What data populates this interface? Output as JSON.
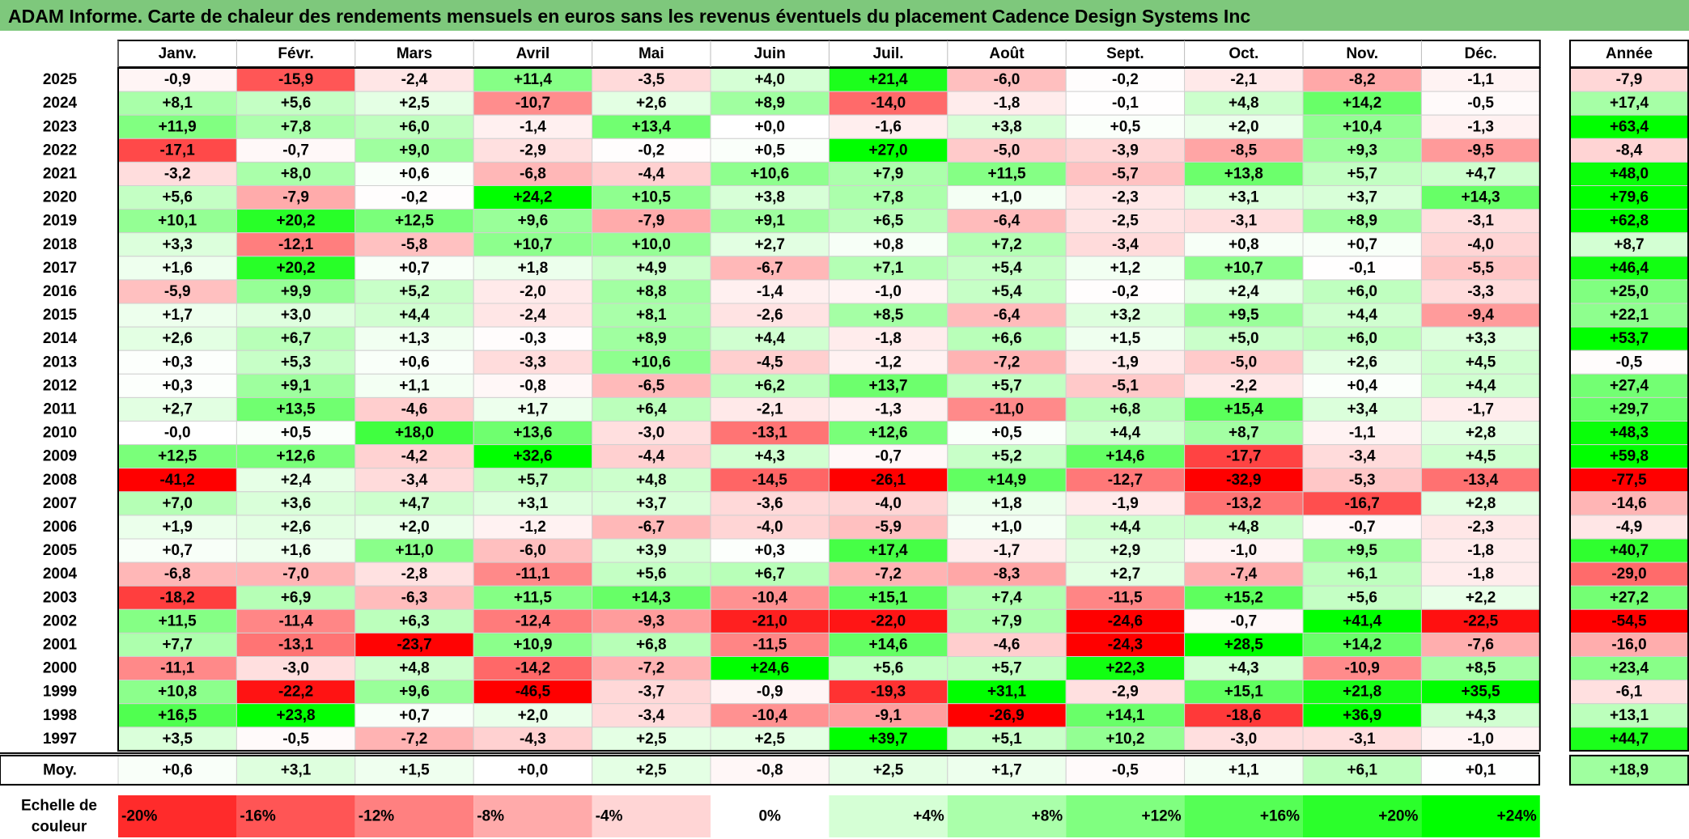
{
  "title": "ADAM Informe. Carte de chaleur des rendements mensuels en euros sans les revenus éventuels du placement Cadence Design Systems Inc",
  "chart_data": {
    "type": "heatmap",
    "title": "ADAM Informe. Carte de chaleur des rendements mensuels en euros sans les revenus éventuels du placement Cadence Design Systems Inc",
    "columns": [
      "Janv.",
      "Févr.",
      "Mars",
      "Avril",
      "Mai",
      "Juin",
      "Juil.",
      "Août",
      "Sept.",
      "Oct.",
      "Nov.",
      "Déc."
    ],
    "year_header": "Année",
    "average_label": "Moy.",
    "scale_label": "Echelle de couleur",
    "colors": {
      "negative": "#ff0000",
      "zero": "#ffffff",
      "positive": "#00ff00",
      "title_bar": "#7ec87c"
    },
    "rows": [
      {
        "year": "2025",
        "values": [
          "-0,9",
          "-15,9",
          "-2,4",
          "+11,4",
          "-3,5",
          "+4,0",
          "+21,4",
          "-6,0",
          "-0,2",
          "-2,1",
          "-8,2",
          "-1,1"
        ],
        "annual": "-7,9"
      },
      {
        "year": "2024",
        "values": [
          "+8,1",
          "+5,6",
          "+2,5",
          "-10,7",
          "+2,6",
          "+8,9",
          "-14,0",
          "-1,8",
          "-0,1",
          "+4,8",
          "+14,2",
          "-0,5"
        ],
        "annual": "+17,4"
      },
      {
        "year": "2023",
        "values": [
          "+11,9",
          "+7,8",
          "+6,0",
          "-1,4",
          "+13,4",
          "+0,0",
          "-1,6",
          "+3,8",
          "+0,5",
          "+2,0",
          "+10,4",
          "-1,3"
        ],
        "annual": "+63,4"
      },
      {
        "year": "2022",
        "values": [
          "-17,1",
          "-0,7",
          "+9,0",
          "-2,9",
          "-0,2",
          "+0,5",
          "+27,0",
          "-5,0",
          "-3,9",
          "-8,5",
          "+9,3",
          "-9,5"
        ],
        "annual": "-8,4"
      },
      {
        "year": "2021",
        "values": [
          "-3,2",
          "+8,0",
          "+0,6",
          "-6,8",
          "-4,4",
          "+10,6",
          "+7,9",
          "+11,5",
          "-5,7",
          "+13,8",
          "+5,7",
          "+4,7"
        ],
        "annual": "+48,0"
      },
      {
        "year": "2020",
        "values": [
          "+5,6",
          "-7,9",
          "-0,2",
          "+24,2",
          "+10,5",
          "+3,8",
          "+7,8",
          "+1,0",
          "-2,3",
          "+3,1",
          "+3,7",
          "+14,3"
        ],
        "annual": "+79,6"
      },
      {
        "year": "2019",
        "values": [
          "+10,1",
          "+20,2",
          "+12,5",
          "+9,6",
          "-7,9",
          "+9,1",
          "+6,5",
          "-6,4",
          "-2,5",
          "-3,1",
          "+8,9",
          "-3,1"
        ],
        "annual": "+62,8"
      },
      {
        "year": "2018",
        "values": [
          "+3,3",
          "-12,1",
          "-5,8",
          "+10,7",
          "+10,0",
          "+2,7",
          "+0,8",
          "+7,2",
          "-3,4",
          "+0,8",
          "+0,7",
          "-4,0"
        ],
        "annual": "+8,7"
      },
      {
        "year": "2017",
        "values": [
          "+1,6",
          "+20,2",
          "+0,7",
          "+1,8",
          "+4,9",
          "-6,7",
          "+7,1",
          "+5,4",
          "+1,2",
          "+10,7",
          "-0,1",
          "-5,5"
        ],
        "annual": "+46,4"
      },
      {
        "year": "2016",
        "values": [
          "-5,9",
          "+9,9",
          "+5,2",
          "-2,0",
          "+8,8",
          "-1,4",
          "-1,0",
          "+5,4",
          "-0,2",
          "+2,4",
          "+6,0",
          "-3,3"
        ],
        "annual": "+25,0"
      },
      {
        "year": "2015",
        "values": [
          "+1,7",
          "+3,0",
          "+4,4",
          "-2,4",
          "+8,1",
          "-2,6",
          "+8,5",
          "-6,4",
          "+3,2",
          "+9,5",
          "+4,4",
          "-9,4"
        ],
        "annual": "+22,1"
      },
      {
        "year": "2014",
        "values": [
          "+2,6",
          "+6,7",
          "+1,3",
          "-0,3",
          "+8,9",
          "+4,4",
          "-1,8",
          "+6,6",
          "+1,5",
          "+5,0",
          "+6,0",
          "+3,3"
        ],
        "annual": "+53,7"
      },
      {
        "year": "2013",
        "values": [
          "+0,3",
          "+5,3",
          "+0,6",
          "-3,3",
          "+10,6",
          "-4,5",
          "-1,2",
          "-7,2",
          "-1,9",
          "-5,0",
          "+2,6",
          "+4,5"
        ],
        "annual": "-0,5"
      },
      {
        "year": "2012",
        "values": [
          "+0,3",
          "+9,1",
          "+1,1",
          "-0,8",
          "-6,5",
          "+6,2",
          "+13,7",
          "+5,7",
          "-5,1",
          "-2,2",
          "+0,4",
          "+4,4"
        ],
        "annual": "+27,4"
      },
      {
        "year": "2011",
        "values": [
          "+2,7",
          "+13,5",
          "-4,6",
          "+1,7",
          "+6,4",
          "-2,1",
          "-1,3",
          "-11,0",
          "+6,8",
          "+15,4",
          "+3,4",
          "-1,7"
        ],
        "annual": "+29,7"
      },
      {
        "year": "2010",
        "values": [
          "-0,0",
          "+0,5",
          "+18,0",
          "+13,6",
          "-3,0",
          "-13,1",
          "+12,6",
          "+0,5",
          "+4,4",
          "+8,7",
          "-1,1",
          "+2,8"
        ],
        "annual": "+48,3"
      },
      {
        "year": "2009",
        "values": [
          "+12,5",
          "+12,6",
          "-4,2",
          "+32,6",
          "-4,4",
          "+4,3",
          "-0,7",
          "+5,2",
          "+14,6",
          "-17,7",
          "-3,4",
          "+4,5"
        ],
        "annual": "+59,8"
      },
      {
        "year": "2008",
        "values": [
          "-41,2",
          "+2,4",
          "-3,4",
          "+5,7",
          "+4,8",
          "-14,5",
          "-26,1",
          "+14,9",
          "-12,7",
          "-32,9",
          "-5,3",
          "-13,4"
        ],
        "annual": "-77,5"
      },
      {
        "year": "2007",
        "values": [
          "+7,0",
          "+3,6",
          "+4,7",
          "+3,1",
          "+3,7",
          "-3,6",
          "-4,0",
          "+1,8",
          "-1,9",
          "-13,2",
          "-16,7",
          "+2,8"
        ],
        "annual": "-14,6"
      },
      {
        "year": "2006",
        "values": [
          "+1,9",
          "+2,6",
          "+2,0",
          "-1,2",
          "-6,7",
          "-4,0",
          "-5,9",
          "+1,0",
          "+4,4",
          "+4,8",
          "-0,7",
          "-2,3"
        ],
        "annual": "-4,9"
      },
      {
        "year": "2005",
        "values": [
          "+0,7",
          "+1,6",
          "+11,0",
          "-6,0",
          "+3,9",
          "+0,3",
          "+17,4",
          "-1,7",
          "+2,9",
          "-1,0",
          "+9,5",
          "-1,8"
        ],
        "annual": "+40,7"
      },
      {
        "year": "2004",
        "values": [
          "-6,8",
          "-7,0",
          "-2,8",
          "-11,1",
          "+5,6",
          "+6,7",
          "-7,2",
          "-8,3",
          "+2,7",
          "-7,4",
          "+6,1",
          "-1,8"
        ],
        "annual": "-29,0"
      },
      {
        "year": "2003",
        "values": [
          "-18,2",
          "+6,9",
          "-6,3",
          "+11,5",
          "+14,3",
          "-10,4",
          "+15,1",
          "+7,4",
          "-11,5",
          "+15,2",
          "+5,6",
          "+2,2"
        ],
        "annual": "+27,2"
      },
      {
        "year": "2002",
        "values": [
          "+11,5",
          "-11,4",
          "+6,3",
          "-12,4",
          "-9,3",
          "-21,0",
          "-22,0",
          "+7,9",
          "-24,6",
          "-0,7",
          "+41,4",
          "-22,5"
        ],
        "annual": "-54,5"
      },
      {
        "year": "2001",
        "values": [
          "+7,7",
          "-13,1",
          "-23,7",
          "+10,9",
          "+6,8",
          "-11,5",
          "+14,6",
          "-4,6",
          "-24,3",
          "+28,5",
          "+14,2",
          "-7,6"
        ],
        "annual": "-16,0"
      },
      {
        "year": "2000",
        "values": [
          "-11,1",
          "-3,0",
          "+4,8",
          "-14,2",
          "-7,2",
          "+24,6",
          "+5,6",
          "+5,7",
          "+22,3",
          "+4,3",
          "-10,9",
          "+8,5"
        ],
        "annual": "+23,4"
      },
      {
        "year": "1999",
        "values": [
          "+10,8",
          "-22,2",
          "+9,6",
          "-46,5",
          "-3,7",
          "-0,9",
          "-19,3",
          "+31,1",
          "-2,9",
          "+15,1",
          "+21,8",
          "+35,5"
        ],
        "annual": "-6,1"
      },
      {
        "year": "1998",
        "values": [
          "+16,5",
          "+23,8",
          "+0,7",
          "+2,0",
          "-3,4",
          "-10,4",
          "-9,1",
          "-26,9",
          "+14,1",
          "-18,6",
          "+36,9",
          "+4,3"
        ],
        "annual": "+13,1"
      },
      {
        "year": "1997",
        "values": [
          "+3,5",
          "-0,5",
          "-7,2",
          "-4,3",
          "+2,5",
          "+2,5",
          "+39,7",
          "+5,1",
          "+10,2",
          "-3,0",
          "-3,1",
          "-1,0"
        ],
        "annual": "+44,7"
      }
    ],
    "averages": [
      "+0,6",
      "+3,1",
      "+1,5",
      "+0,0",
      "+2,5",
      "-0,8",
      "+2,5",
      "+1,7",
      "-0,5",
      "+1,1",
      "+6,1",
      "+0,1"
    ],
    "average_annual": "+18,9",
    "scale": [
      {
        "label": "-20%",
        "value": -20
      },
      {
        "label": "-16%",
        "value": -16
      },
      {
        "label": "-12%",
        "value": -12
      },
      {
        "label": "-8%",
        "value": -8
      },
      {
        "label": "-4%",
        "value": -4
      },
      {
        "label": "0%",
        "value": 0
      },
      {
        "label": "+4%",
        "value": 4
      },
      {
        "label": "+8%",
        "value": 8
      },
      {
        "label": "+12%",
        "value": 12
      },
      {
        "label": "+16%",
        "value": 16
      },
      {
        "label": "+20%",
        "value": 20
      },
      {
        "label": "+24%",
        "value": 24
      }
    ]
  }
}
